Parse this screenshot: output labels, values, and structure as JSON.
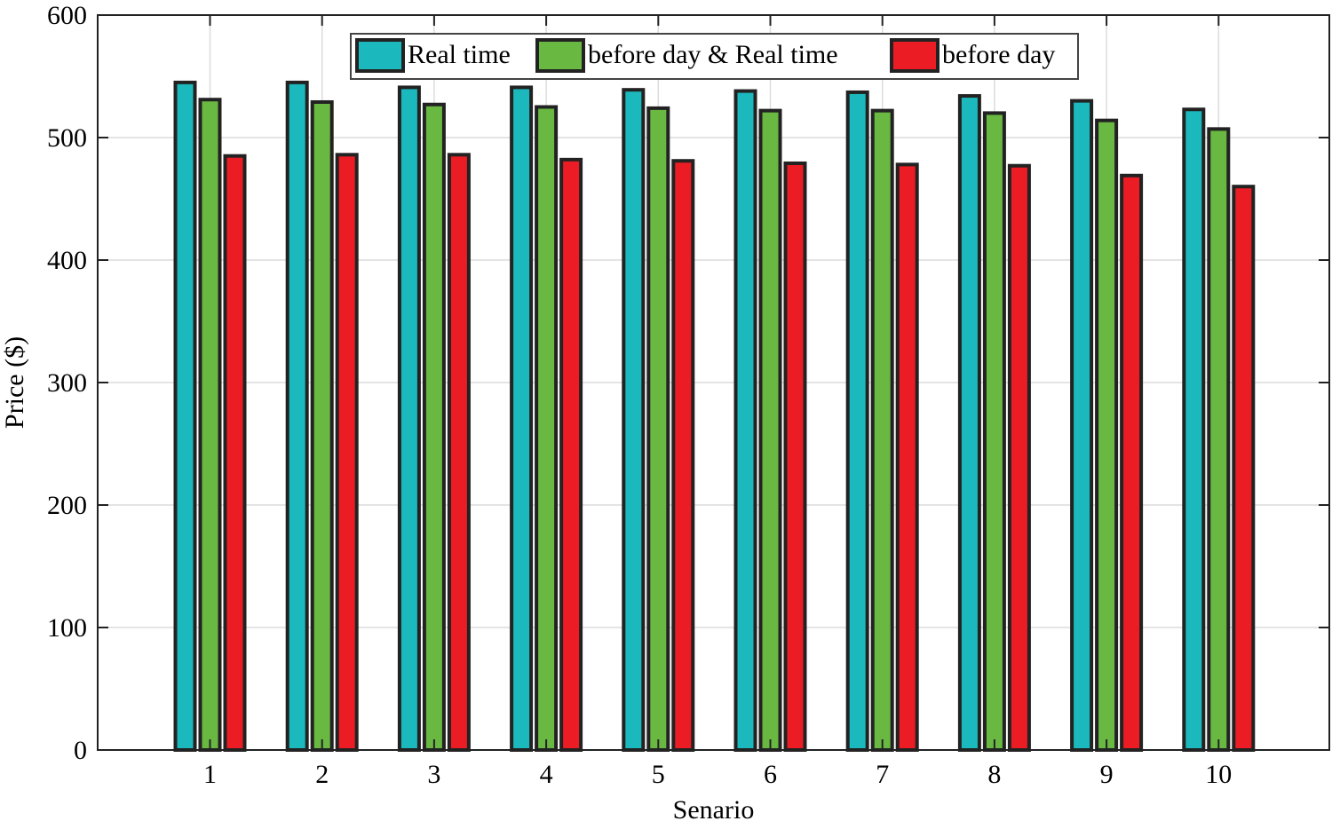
{
  "chart_data": {
    "type": "bar",
    "title": "",
    "xlabel": "Senario",
    "ylabel": "Price ($)",
    "categories": [
      "1",
      "2",
      "3",
      "4",
      "5",
      "6",
      "7",
      "8",
      "9",
      "10"
    ],
    "ylim": [
      0,
      600
    ],
    "yticks": [
      0,
      100,
      200,
      300,
      400,
      500,
      600
    ],
    "grid": true,
    "legend_position": "top-center",
    "series": [
      {
        "name": "Real time",
        "color": "#1bb9bd",
        "values": [
          545,
          545,
          541,
          541,
          539,
          538,
          537,
          534,
          530,
          523
        ]
      },
      {
        "name": "before day & Real time",
        "color": "#69b842",
        "values": [
          531,
          529,
          527,
          525,
          524,
          522,
          522,
          520,
          514,
          507
        ]
      },
      {
        "name": "before day",
        "color": "#ec1c24",
        "values": [
          485,
          486,
          486,
          482,
          481,
          479,
          478,
          477,
          469,
          460
        ]
      }
    ]
  }
}
